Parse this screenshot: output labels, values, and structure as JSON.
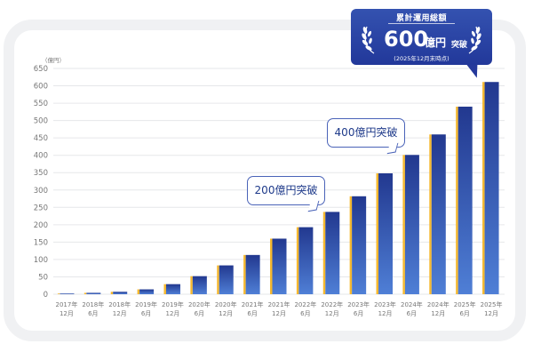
{
  "chart_data": {
    "type": "bar",
    "ylabel": "（億円）",
    "ylim": [
      0,
      650
    ],
    "yticks": [
      0,
      50,
      100,
      150,
      200,
      250,
      300,
      350,
      400,
      450,
      500,
      550,
      600,
      650
    ],
    "grid": true,
    "categories": [
      [
        "2017年",
        "12月"
      ],
      [
        "2018年",
        "6月"
      ],
      [
        "2018年",
        "12月"
      ],
      [
        "2019年",
        "6月"
      ],
      [
        "2019年",
        "12月"
      ],
      [
        "2020年",
        "6月"
      ],
      [
        "2020年",
        "12月"
      ],
      [
        "2021年",
        "6月"
      ],
      [
        "2021年",
        "12月"
      ],
      [
        "2022年",
        "6月"
      ],
      [
        "2022年",
        "12月"
      ],
      [
        "2023年",
        "6月"
      ],
      [
        "2023年",
        "12月"
      ],
      [
        "2024年",
        "6月"
      ],
      [
        "2024年",
        "12月"
      ],
      [
        "2025年",
        "6月"
      ],
      [
        "2025年",
        "12月"
      ]
    ],
    "values": [
      1,
      4,
      7,
      14,
      29,
      52,
      83,
      113,
      160,
      193,
      237,
      282,
      348,
      401,
      460,
      540,
      611
    ],
    "colors": {
      "bar_top": "#22388f",
      "bar_bottom": "#4f7fd6",
      "bar_edge": "#f5b82e",
      "grid": "#e6e7ea",
      "text": "#777777"
    }
  },
  "callouts": {
    "c200": "200億円突破",
    "c400": "400億円突破"
  },
  "badge": {
    "title": "累計運用総額",
    "number": "600",
    "unit": "億円",
    "suffix": "突破",
    "note": "(2025年12月末時点)",
    "color": "#2a43a3"
  }
}
